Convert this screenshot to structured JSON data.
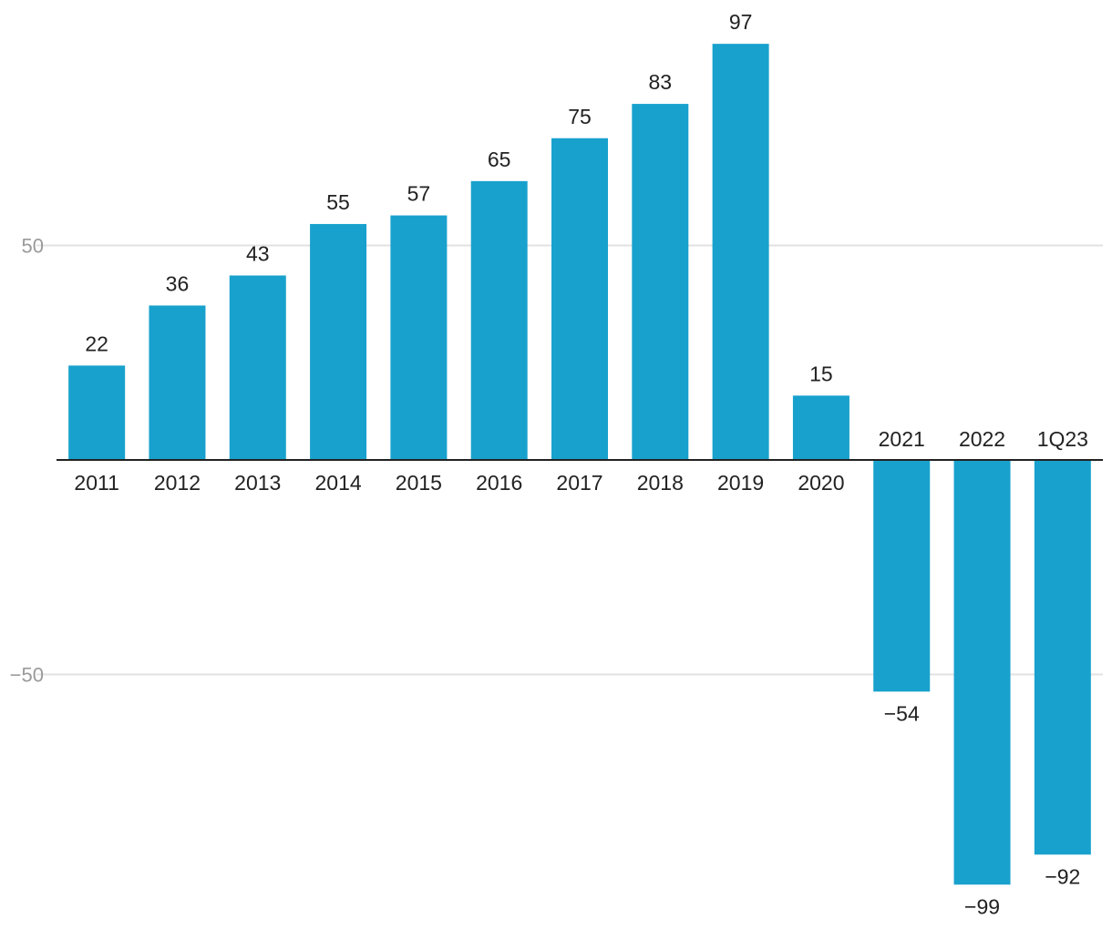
{
  "chart_data": {
    "type": "bar",
    "categories": [
      "2011",
      "2012",
      "2013",
      "2014",
      "2015",
      "2016",
      "2017",
      "2018",
      "2019",
      "2020",
      "2021",
      "2022",
      "1Q23"
    ],
    "values": [
      22,
      36,
      43,
      55,
      57,
      65,
      75,
      83,
      97,
      15,
      -54,
      -99,
      -92
    ],
    "value_labels": [
      "22",
      "36",
      "43",
      "55",
      "57",
      "65",
      "75",
      "83",
      "97",
      "15",
      "−54",
      "−99",
      "−92"
    ],
    "y_ticks": [
      50,
      -50
    ],
    "y_tick_labels": [
      "50",
      "−50"
    ],
    "ylim": [
      -105,
      103
    ],
    "grid": true,
    "bar_color": "#18a1cd",
    "title": "",
    "xlabel": "",
    "ylabel": ""
  }
}
